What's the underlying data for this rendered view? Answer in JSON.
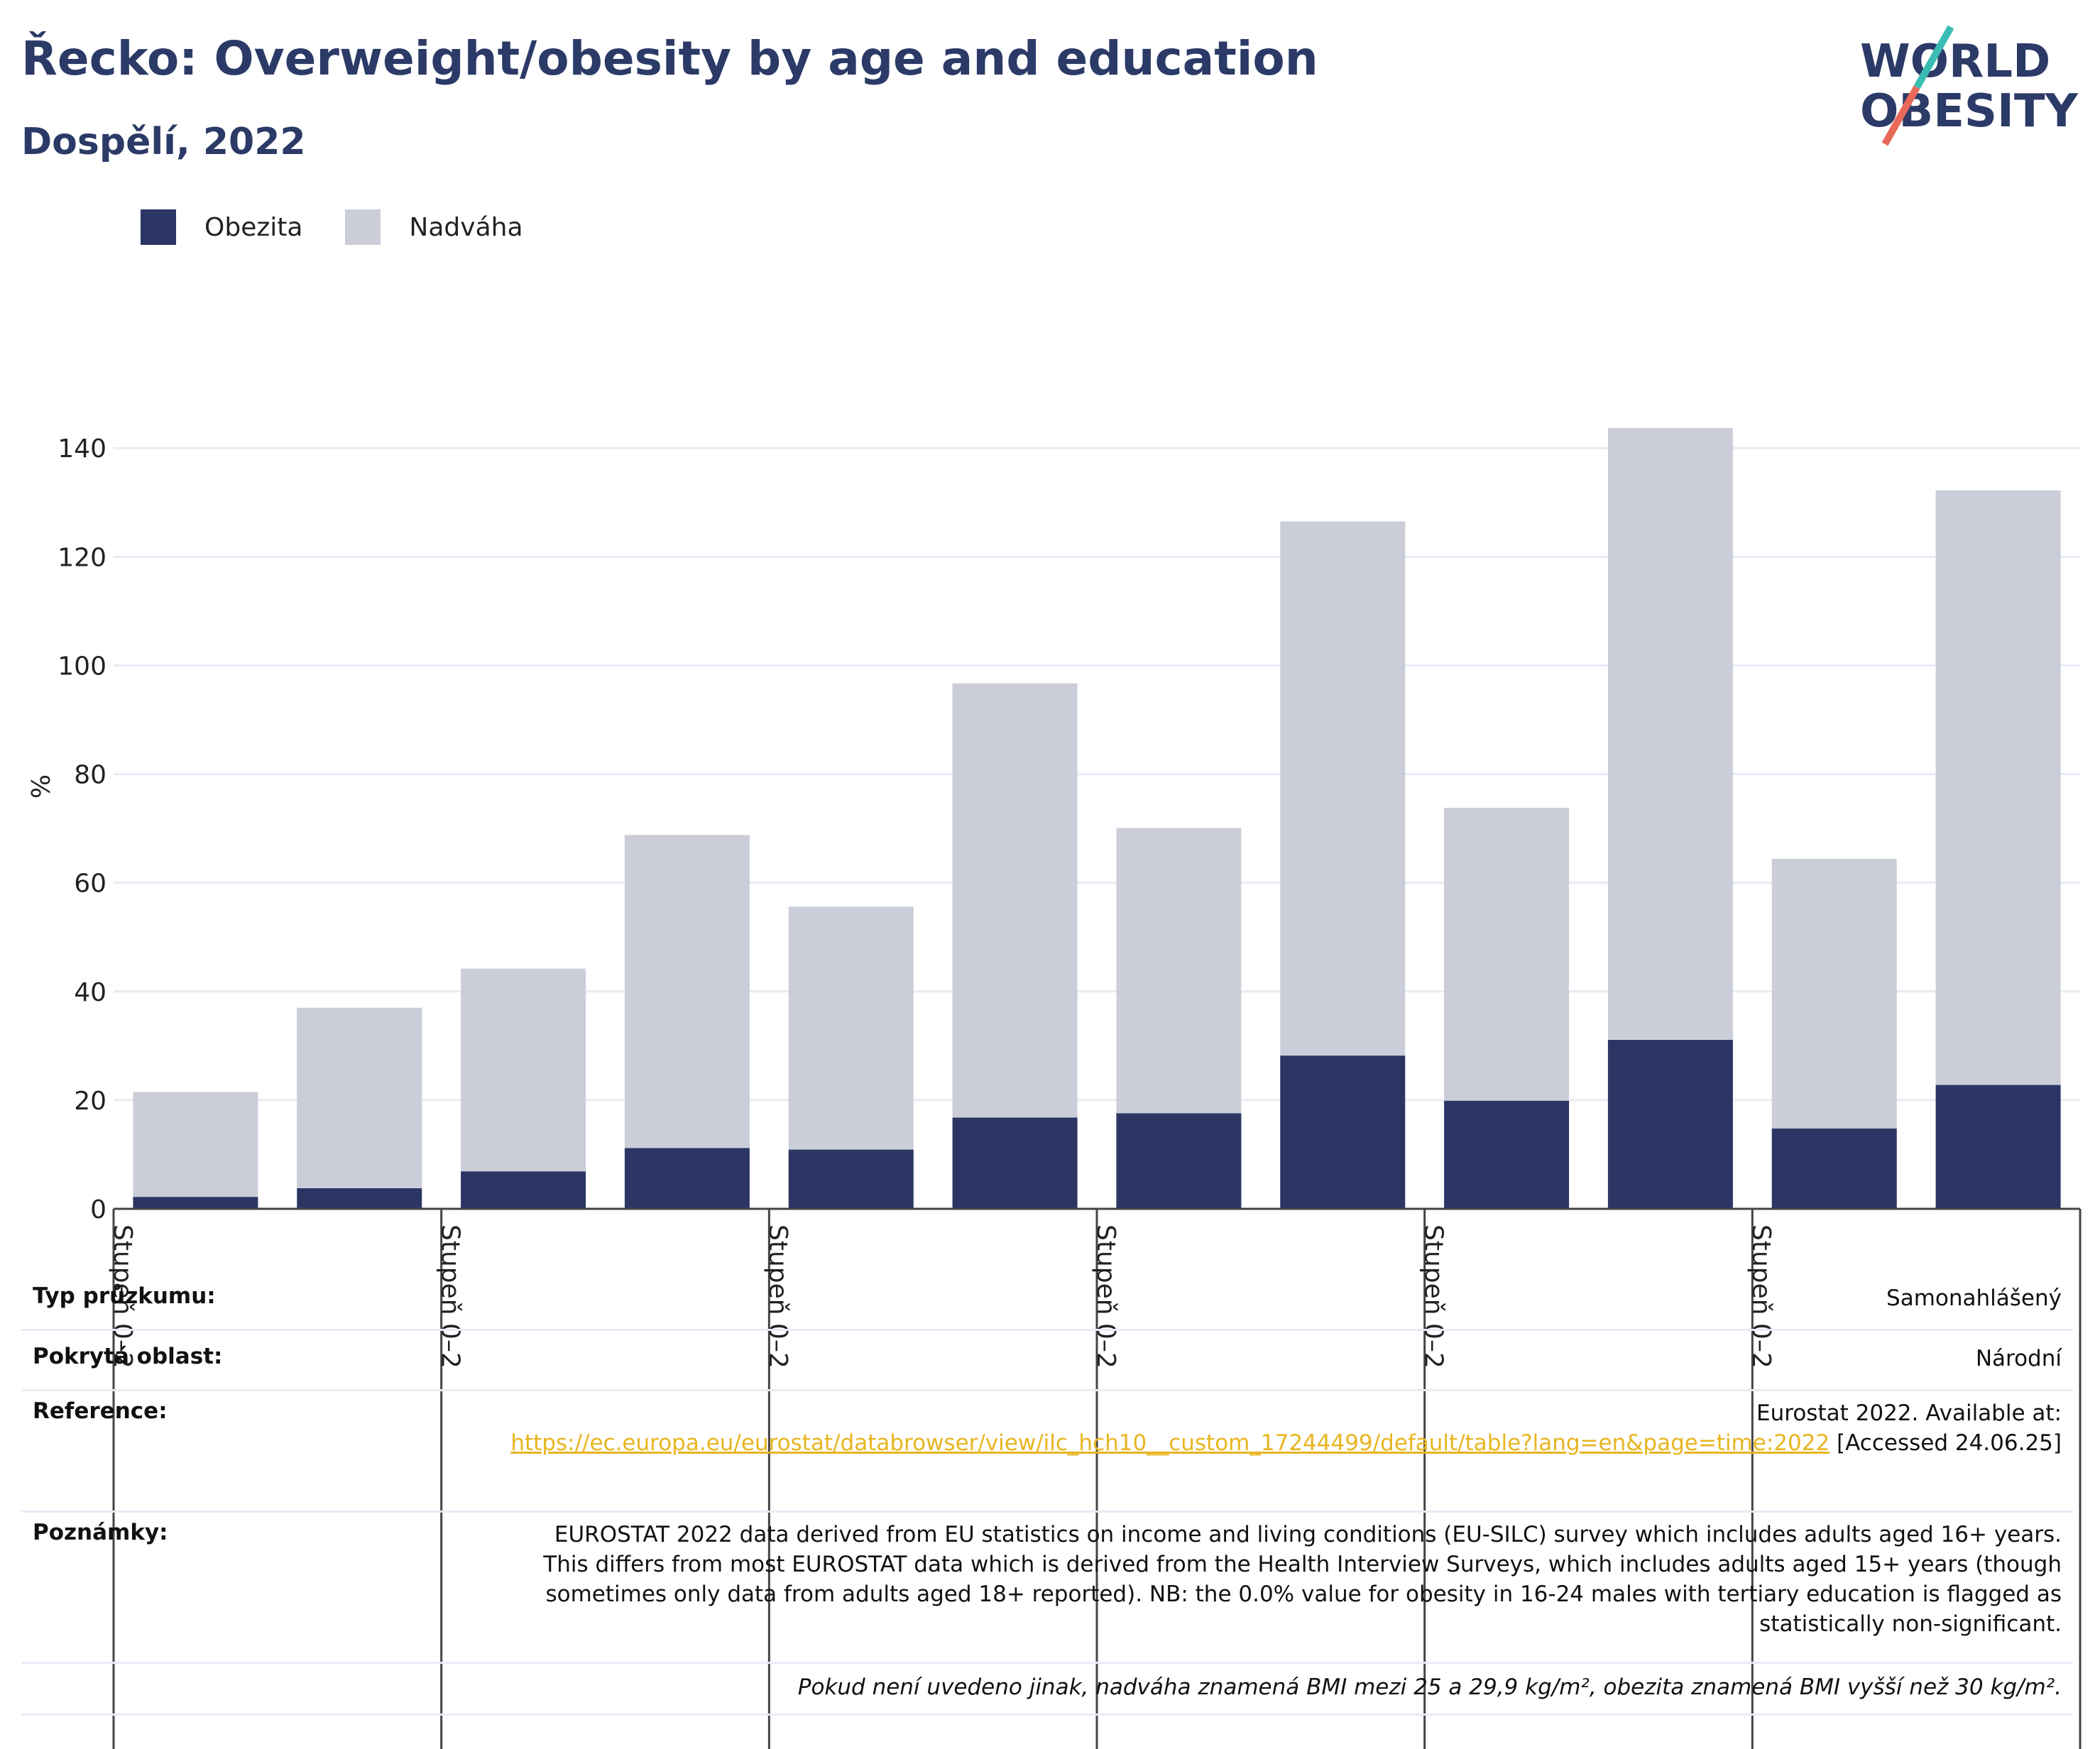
{
  "title": "Řecko: Overweight/obesity by age and education",
  "subtitle": "Dospělí, 2022",
  "logo": {
    "line1": "WORLD",
    "line2": "OBESITY"
  },
  "legend": [
    {
      "label": "Obezita",
      "color": "#2b3665"
    },
    {
      "label": "Nadváha",
      "color": "#cbcdd9"
    }
  ],
  "chart_data": {
    "type": "bar",
    "stacked": true,
    "ylabel": "%",
    "ylim": [
      0,
      148
    ],
    "yticks": [
      0,
      20,
      40,
      60,
      80,
      100,
      120,
      140
    ],
    "grid": true,
    "legend_position": "top-left",
    "group_labels": [
      "Stupeň 0–2",
      "Stupeň 0–2",
      "Stupeň 0–2",
      "Stupeň 0–2",
      "Stupeň 0–2",
      "Stupeň 0–2"
    ],
    "series": [
      {
        "name": "Obezita",
        "color": "#2b3665",
        "values": [
          2.2,
          3.8,
          6.9,
          11.2,
          10.9,
          16.8,
          17.6,
          28.2,
          19.9,
          31.1,
          14.8,
          22.8
        ]
      },
      {
        "name": "Nadváha",
        "color": "#cbcdd9",
        "values": [
          19.3,
          33.2,
          37.3,
          57.6,
          44.7,
          79.9,
          52.5,
          98.3,
          53.9,
          112.6,
          49.6,
          109.4
        ]
      }
    ]
  },
  "info": {
    "survey_label": "Typ průzkumu:",
    "survey_value": "Samonahlášený",
    "area_label": "Pokrytá oblast:",
    "area_value": "Národní",
    "reference_label": "Reference:",
    "reference_text": "Eurostat 2022. Available at:",
    "reference_link": "https://ec.europa.eu/eurostat/databrowser/view/ilc_hch10__custom_17244499/default/table?lang=en&page=time:2022",
    "reference_accessed": "[Accessed 24.06.25]",
    "notes_label": "Poznámky:",
    "notes_text": "EUROSTAT 2022 data derived from EU statistics on income and living conditions (EU-SILC) survey which includes adults aged 16+ years. This differs from most EUROSTAT data which is derived from the Health Interview Surveys, which includes adults aged 15+ years (though sometimes only data from adults aged 18+ reported). NB: the 0.0% value for obesity in 16-24 males with tertiary education is flagged as statistically non-significant.",
    "footnote": "Pokud není uvedeno jinak, nadváha znamená BMI mezi 25 a 29,9 kg/m², obezita znamená BMI vyšší než 30 kg/m²."
  }
}
